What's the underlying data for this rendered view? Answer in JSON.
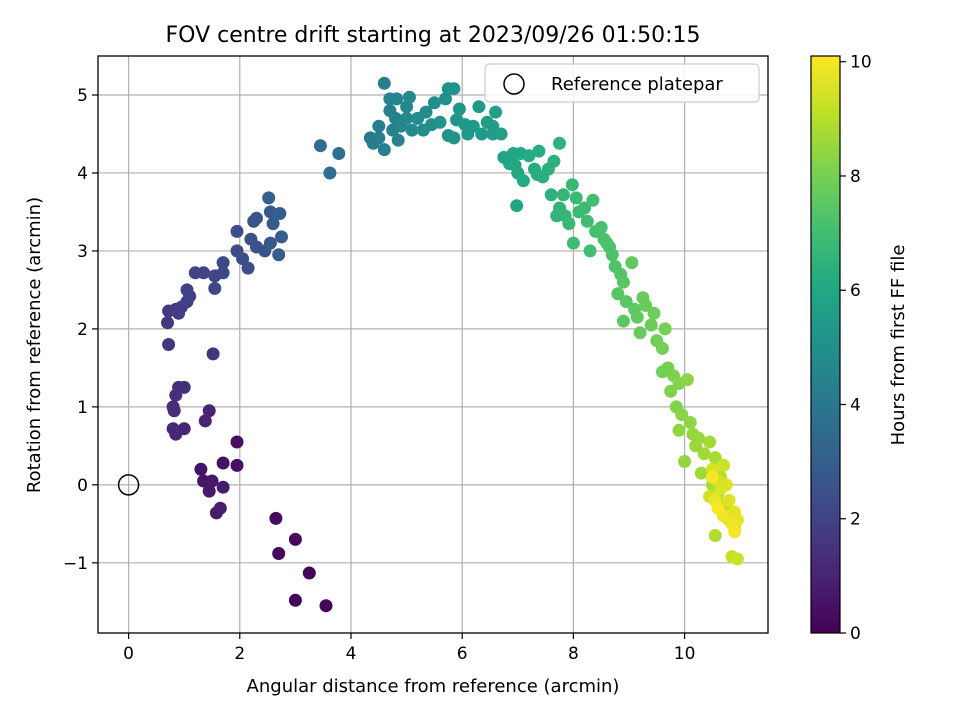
{
  "chart_data": {
    "type": "scatter",
    "title": "FOV centre drift starting at 2023/09/26 01:50:15",
    "xlabel": "Angular distance from reference (arcmin)",
    "ylabel": "Rotation from reference (arcmin)",
    "xlim": [
      -0.55,
      11.5
    ],
    "ylim": [
      -1.9,
      5.5
    ],
    "xticks": [
      0,
      2,
      4,
      6,
      8,
      10
    ],
    "yticks": [
      -1,
      0,
      1,
      2,
      3,
      4,
      5
    ],
    "xtick_labels": [
      "0",
      "2",
      "4",
      "6",
      "8",
      "10"
    ],
    "ytick_labels": [
      "−1",
      "0",
      "1",
      "2",
      "3",
      "4",
      "5"
    ],
    "grid": true,
    "legend": {
      "placement": "top-right",
      "entries": [
        "Reference platepar"
      ]
    },
    "reference_point": {
      "x": 0,
      "y": 0
    },
    "colorbar": {
      "label": "Hours from first FF file",
      "colormap": "viridis",
      "range": [
        0,
        10.1
      ],
      "ticks": [
        0,
        2,
        4,
        6,
        8,
        10
      ],
      "tick_labels": [
        "0",
        "2",
        "4",
        "6",
        "8",
        "10"
      ]
    },
    "points": [
      [
        3.55,
        -1.55,
        0.05
      ],
      [
        3.0,
        -1.48,
        0.1
      ],
      [
        3.25,
        -1.13,
        0.15
      ],
      [
        3.0,
        -0.7,
        0.2
      ],
      [
        2.7,
        -0.88,
        0.25
      ],
      [
        2.65,
        -0.43,
        0.3
      ],
      [
        1.95,
        0.55,
        0.4
      ],
      [
        1.95,
        0.25,
        0.45
      ],
      [
        1.7,
        0.28,
        0.5
      ],
      [
        1.3,
        0.2,
        0.55
      ],
      [
        1.35,
        0.05,
        0.6
      ],
      [
        1.5,
        0.05,
        0.65
      ],
      [
        1.45,
        -0.08,
        0.7
      ],
      [
        1.7,
        -0.03,
        0.75
      ],
      [
        1.65,
        -0.3,
        0.8
      ],
      [
        1.58,
        -0.36,
        0.85
      ],
      [
        1.45,
        0.95,
        0.95
      ],
      [
        1.38,
        0.82,
        1.0
      ],
      [
        1.0,
        0.72,
        1.05
      ],
      [
        0.8,
        0.72,
        1.1
      ],
      [
        0.85,
        0.65,
        1.15
      ],
      [
        0.8,
        1.0,
        1.2
      ],
      [
        0.82,
        0.95,
        1.25
      ],
      [
        0.9,
        1.25,
        1.3
      ],
      [
        0.85,
        1.15,
        1.35
      ],
      [
        1.0,
        1.25,
        1.4
      ],
      [
        1.52,
        1.68,
        1.5
      ],
      [
        0.72,
        1.8,
        1.55
      ],
      [
        0.7,
        2.08,
        1.6
      ],
      [
        0.72,
        2.23,
        1.65
      ],
      [
        0.85,
        2.25,
        1.7
      ],
      [
        0.95,
        2.28,
        1.75
      ],
      [
        0.9,
        2.2,
        1.8
      ],
      [
        1.05,
        2.35,
        1.85
      ],
      [
        1.1,
        2.42,
        1.9
      ],
      [
        1.05,
        2.5,
        1.95
      ],
      [
        1.2,
        2.72,
        2.0
      ],
      [
        1.35,
        2.72,
        2.05
      ],
      [
        1.55,
        2.68,
        2.1
      ],
      [
        1.55,
        2.52,
        2.15
      ],
      [
        1.7,
        2.72,
        2.2
      ],
      [
        1.7,
        2.85,
        2.25
      ],
      [
        1.95,
        3.0,
        2.3
      ],
      [
        1.95,
        3.25,
        2.35
      ],
      [
        2.05,
        2.9,
        2.4
      ],
      [
        2.15,
        2.78,
        2.45
      ],
      [
        2.2,
        3.15,
        2.5
      ],
      [
        2.3,
        3.05,
        2.55
      ],
      [
        2.25,
        3.38,
        2.6
      ],
      [
        2.3,
        3.42,
        2.65
      ],
      [
        2.45,
        3.0,
        2.7
      ],
      [
        2.55,
        3.1,
        2.75
      ],
      [
        2.55,
        3.5,
        2.8
      ],
      [
        2.6,
        3.35,
        2.85
      ],
      [
        2.7,
        2.95,
        2.9
      ],
      [
        2.75,
        3.18,
        2.95
      ],
      [
        2.72,
        3.48,
        3.0
      ],
      [
        2.52,
        3.68,
        3.05
      ],
      [
        3.45,
        4.35,
        3.6
      ],
      [
        3.62,
        4.0,
        3.65
      ],
      [
        3.78,
        4.25,
        3.7
      ],
      [
        4.35,
        4.45,
        4.1
      ],
      [
        4.4,
        4.38,
        4.15
      ],
      [
        4.5,
        4.45,
        4.2
      ],
      [
        4.6,
        4.3,
        4.25
      ],
      [
        4.6,
        5.15,
        4.3
      ],
      [
        4.7,
        4.8,
        4.35
      ],
      [
        4.8,
        4.7,
        4.4
      ],
      [
        4.75,
        4.55,
        4.45
      ],
      [
        4.85,
        4.42,
        4.5
      ],
      [
        4.82,
        4.95,
        4.55
      ],
      [
        4.9,
        4.6,
        4.6
      ],
      [
        5.0,
        4.85,
        4.65
      ],
      [
        5.05,
        4.97,
        4.7
      ],
      [
        5.1,
        4.55,
        4.75
      ],
      [
        5.2,
        4.7,
        4.8
      ],
      [
        5.35,
        4.78,
        4.85
      ],
      [
        5.45,
        4.62,
        4.9
      ],
      [
        5.5,
        4.9,
        4.95
      ],
      [
        5.7,
        4.95,
        5.0
      ],
      [
        5.75,
        5.08,
        5.05
      ],
      [
        5.85,
        5.08,
        5.1
      ],
      [
        5.75,
        4.48,
        5.15
      ],
      [
        5.85,
        4.45,
        5.2
      ],
      [
        5.9,
        4.68,
        5.25
      ],
      [
        5.95,
        4.82,
        5.3
      ],
      [
        6.05,
        4.62,
        5.35
      ],
      [
        6.2,
        4.6,
        5.4
      ],
      [
        6.3,
        4.85,
        5.45
      ],
      [
        6.35,
        4.5,
        5.5
      ],
      [
        6.45,
        4.65,
        5.55
      ],
      [
        6.55,
        4.5,
        5.6
      ],
      [
        6.6,
        4.78,
        5.65
      ],
      [
        6.7,
        4.5,
        5.7
      ],
      [
        6.75,
        4.2,
        5.8
      ],
      [
        6.85,
        4.12,
        5.85
      ],
      [
        6.92,
        4.25,
        5.9
      ],
      [
        6.98,
        3.58,
        5.95
      ],
      [
        7.0,
        4.0,
        6.0
      ],
      [
        7.05,
        4.25,
        6.05
      ],
      [
        7.1,
        3.9,
        6.1
      ],
      [
        7.2,
        4.22,
        6.15
      ],
      [
        7.3,
        4.05,
        6.2
      ],
      [
        7.38,
        4.28,
        6.25
      ],
      [
        7.45,
        3.95,
        6.3
      ],
      [
        7.55,
        4.05,
        6.35
      ],
      [
        7.6,
        3.72,
        6.4
      ],
      [
        7.65,
        4.15,
        6.45
      ],
      [
        7.75,
        4.38,
        6.5
      ],
      [
        7.75,
        3.55,
        6.55
      ],
      [
        7.82,
        3.72,
        6.6
      ],
      [
        7.85,
        3.45,
        6.65
      ],
      [
        7.92,
        3.35,
        6.7
      ],
      [
        7.98,
        3.85,
        6.75
      ],
      [
        8.05,
        3.68,
        6.8
      ],
      [
        8.1,
        3.5,
        6.85
      ],
      [
        8.2,
        3.55,
        6.9
      ],
      [
        8.25,
        3.38,
        6.95
      ],
      [
        8.35,
        3.65,
        7.0
      ],
      [
        8.4,
        3.25,
        7.05
      ],
      [
        8.5,
        3.3,
        7.1
      ],
      [
        8.55,
        3.15,
        7.15
      ],
      [
        8.65,
        3.05,
        7.2
      ],
      [
        8.7,
        2.95,
        7.25
      ],
      [
        8.75,
        2.8,
        7.3
      ],
      [
        8.85,
        2.7,
        7.35
      ],
      [
        8.8,
        2.45,
        7.4
      ],
      [
        8.9,
        2.6,
        7.45
      ],
      [
        8.95,
        2.35,
        7.5
      ],
      [
        9.05,
        2.85,
        7.55
      ],
      [
        9.1,
        2.25,
        7.6
      ],
      [
        9.15,
        2.15,
        7.65
      ],
      [
        9.25,
        2.4,
        7.7
      ],
      [
        9.3,
        2.3,
        7.75
      ],
      [
        9.4,
        2.05,
        7.8
      ],
      [
        9.45,
        2.2,
        7.85
      ],
      [
        9.5,
        1.85,
        7.9
      ],
      [
        9.6,
        1.75,
        7.95
      ],
      [
        9.65,
        2.0,
        8.0
      ],
      [
        9.7,
        1.5,
        8.05
      ],
      [
        9.8,
        1.4,
        8.1
      ],
      [
        9.75,
        1.2,
        8.15
      ],
      [
        9.85,
        1.0,
        8.2
      ],
      [
        9.9,
        1.3,
        8.25
      ],
      [
        9.95,
        0.9,
        8.3
      ],
      [
        10.05,
        1.35,
        8.35
      ],
      [
        10.1,
        0.8,
        8.4
      ],
      [
        10.0,
        0.3,
        8.45
      ],
      [
        10.15,
        0.65,
        8.5
      ],
      [
        10.2,
        0.5,
        8.55
      ],
      [
        10.3,
        0.15,
        8.6
      ],
      [
        10.35,
        0.4,
        8.65
      ],
      [
        10.45,
        0.55,
        8.7
      ],
      [
        10.5,
        0.0,
        8.75
      ],
      [
        10.55,
        0.35,
        8.8
      ],
      [
        10.6,
        -0.1,
        8.85
      ],
      [
        10.55,
        -0.65,
        8.9
      ],
      [
        10.65,
        0.1,
        8.95
      ],
      [
        10.7,
        -0.25,
        9.0
      ],
      [
        10.75,
        -0.3,
        9.05
      ],
      [
        10.8,
        -0.45,
        9.1
      ],
      [
        10.85,
        -0.35,
        9.15
      ],
      [
        10.9,
        -0.55,
        9.2
      ],
      [
        10.85,
        -0.92,
        9.25
      ],
      [
        10.95,
        -0.95,
        9.3
      ],
      [
        10.7,
        0.25,
        9.35
      ],
      [
        10.6,
        0.05,
        9.4
      ],
      [
        10.45,
        -0.15,
        9.45
      ],
      [
        10.5,
        0.2,
        9.5
      ],
      [
        10.65,
        -0.05,
        9.55
      ],
      [
        10.75,
        0.0,
        9.6
      ],
      [
        10.8,
        -0.2,
        9.65
      ],
      [
        10.9,
        -0.35,
        9.7
      ],
      [
        10.95,
        -0.45,
        9.75
      ],
      [
        10.55,
        -0.2,
        9.8
      ],
      [
        10.7,
        -0.4,
        9.85
      ],
      [
        10.85,
        -0.5,
        9.9
      ],
      [
        10.9,
        -0.6,
        9.95
      ],
      [
        10.5,
        0.1,
        10.0
      ],
      [
        10.6,
        -0.3,
        10.05
      ],
      [
        9.9,
        0.7,
        8.4
      ],
      [
        10.25,
        0.6,
        8.55
      ],
      [
        9.6,
        1.45,
        7.95
      ],
      [
        9.2,
        1.95,
        7.75
      ],
      [
        8.9,
        2.1,
        7.5
      ],
      [
        8.6,
        3.1,
        7.2
      ],
      [
        8.3,
        3.0,
        7.0
      ],
      [
        8.0,
        3.1,
        6.85
      ],
      [
        7.7,
        3.45,
        6.6
      ],
      [
        7.35,
        3.98,
        6.3
      ],
      [
        6.95,
        4.1,
        6.0
      ],
      [
        6.55,
        4.6,
        5.6
      ],
      [
        6.1,
        4.5,
        5.4
      ],
      [
        5.6,
        4.65,
        5.1
      ],
      [
        5.3,
        4.55,
        4.9
      ],
      [
        5.0,
        4.7,
        4.7
      ],
      [
        4.7,
        4.95,
        4.5
      ],
      [
        4.5,
        4.6,
        4.25
      ]
    ]
  }
}
